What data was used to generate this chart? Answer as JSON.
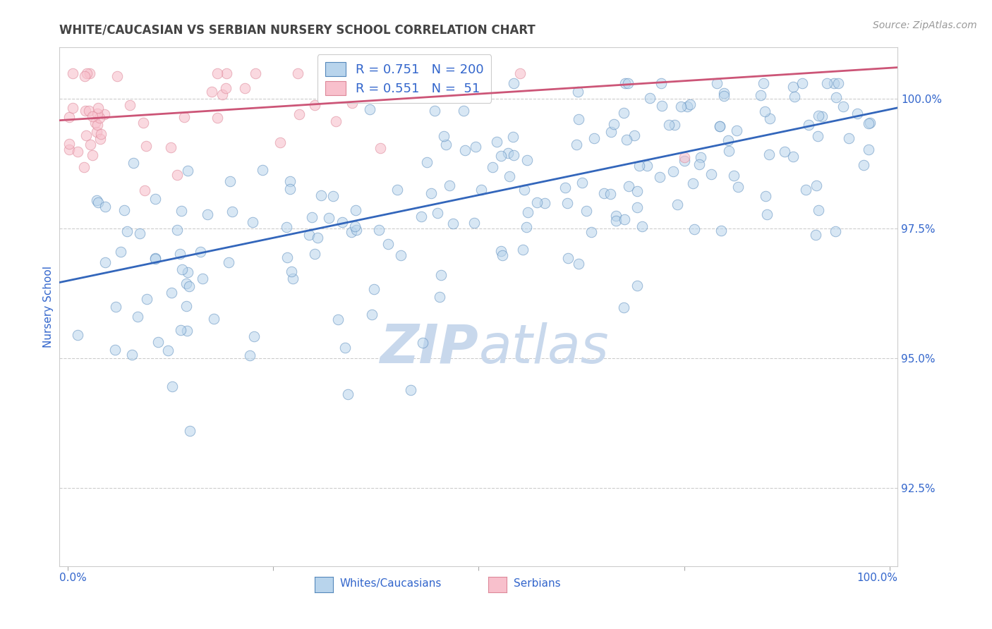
{
  "title": "WHITE/CAUCASIAN VS SERBIAN NURSERY SCHOOL CORRELATION CHART",
  "source_text": "Source: ZipAtlas.com",
  "ylabel": "Nursery School",
  "ylim": [
    91.0,
    101.0
  ],
  "xlim": [
    -1,
    101
  ],
  "yticks": [
    92.5,
    95.0,
    97.5,
    100.0
  ],
  "ytick_labels": [
    "92.5%",
    "95.0%",
    "97.5%",
    "100.0%"
  ],
  "blue_R": 0.751,
  "blue_N": 200,
  "pink_R": 0.551,
  "pink_N": 51,
  "blue_color": "#b8d4ec",
  "blue_edge_color": "#5588bb",
  "blue_line_color": "#3366bb",
  "pink_color": "#f8c0cc",
  "pink_edge_color": "#dd8899",
  "pink_line_color": "#cc5577",
  "legend_label1": "Whites/Caucasians",
  "legend_label2": "Serbians",
  "watermark_zip": "ZIP",
  "watermark_atlas": "atlas",
  "watermark_color": "#c8d8ec",
  "background_color": "#ffffff",
  "grid_color": "#cccccc",
  "title_color": "#444444",
  "value_color": "#3366cc",
  "source_color": "#999999",
  "blue_line_intercept": 96.5,
  "blue_line_slope": 0.033,
  "pink_line_intercept": 99.6,
  "pink_line_slope": 0.01
}
